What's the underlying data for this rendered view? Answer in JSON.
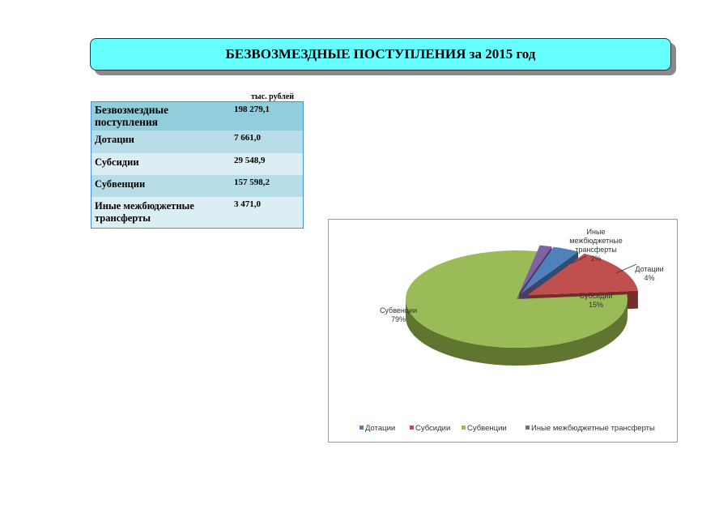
{
  "header": {
    "title": "БЕЗВОЗМЕЗДНЫЕ ПОСТУПЛЕНИЯ за 2015 год"
  },
  "table": {
    "unit": "тыс. рублей",
    "rows": [
      {
        "label": "Безвозмездные поступления",
        "value": "198 279,1"
      },
      {
        "label": "Дотации",
        "value": "7 661,0"
      },
      {
        "label": "Субсидии",
        "value": "29 548,9"
      },
      {
        "label": "Субвенции",
        "value": "157 598,2"
      },
      {
        "label": "Иные межбюджетные трансферты",
        "value": "3 471,0"
      }
    ]
  },
  "chart_data": {
    "type": "pie",
    "style": "3d-exploded",
    "legend_position": "bottom",
    "categories": [
      "Дотации",
      "Субсидии",
      "Субвенции",
      "Иные межбюджетные трансферты"
    ],
    "values": [
      7661.0,
      29548.9,
      157598.2,
      3471.0
    ],
    "percent_labels": [
      "4%",
      "15%",
      "79%",
      "2%"
    ],
    "colors": [
      "#4f81bd",
      "#c0504d",
      "#9bbb59",
      "#8064a2"
    ],
    "side_colors": [
      "#2c4d75",
      "#772c2a",
      "#5f7530",
      "#4d3b62"
    ]
  }
}
